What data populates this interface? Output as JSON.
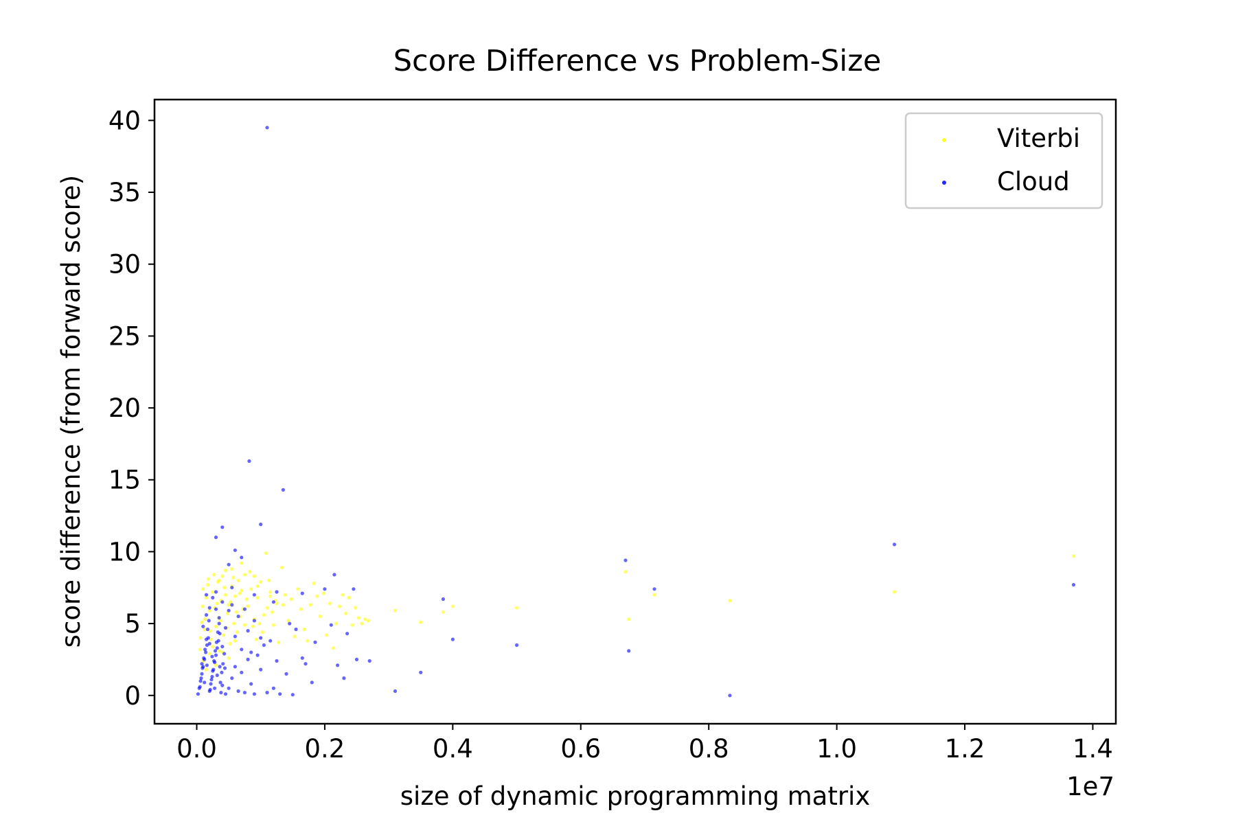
{
  "chart_data": {
    "type": "scatter",
    "title": "Score Difference vs Problem-Size",
    "xlabel": "size of dynamic programming matrix",
    "ylabel": "score difference (from forward score)",
    "x_offset_label": "1e7",
    "xlim": [
      -0.066,
      1.436
    ],
    "ylim": [
      -1.97,
      41.45
    ],
    "x_unit_multiplier": 10000000,
    "x_ticks": [
      0.0,
      0.2,
      0.4,
      0.6,
      0.8,
      1.0,
      1.2,
      1.4
    ],
    "x_tick_labels": [
      "0.0",
      "0.2",
      "0.4",
      "0.6",
      "0.8",
      "1.0",
      "1.2",
      "1.4"
    ],
    "y_ticks": [
      0,
      5,
      10,
      15,
      20,
      25,
      30,
      35,
      40
    ],
    "y_tick_labels": [
      "0",
      "5",
      "10",
      "15",
      "20",
      "25",
      "30",
      "35",
      "40"
    ],
    "grid": false,
    "legend_position": "top-right",
    "series": [
      {
        "name": "Viterbi",
        "color": "#ffff00",
        "points": [
          [
            0.005,
            3.2
          ],
          [
            0.008,
            5.1
          ],
          [
            0.01,
            7.4
          ],
          [
            0.012,
            4.6
          ],
          [
            0.015,
            6.8
          ],
          [
            0.018,
            8.1
          ],
          [
            0.02,
            5.9
          ],
          [
            0.022,
            3.9
          ],
          [
            0.025,
            7.2
          ],
          [
            0.028,
            6.1
          ],
          [
            0.03,
            4.8
          ],
          [
            0.033,
            7.9
          ],
          [
            0.035,
            5.4
          ],
          [
            0.038,
            6.6
          ],
          [
            0.04,
            8.3
          ],
          [
            0.042,
            4.2
          ],
          [
            0.045,
            7.0
          ],
          [
            0.048,
            5.7
          ],
          [
            0.05,
            6.3
          ],
          [
            0.052,
            3.6
          ],
          [
            0.055,
            7.6
          ],
          [
            0.058,
            5.0
          ],
          [
            0.06,
            6.9
          ],
          [
            0.063,
            4.4
          ],
          [
            0.065,
            8.0
          ],
          [
            0.068,
            5.5
          ],
          [
            0.07,
            7.3
          ],
          [
            0.072,
            6.0
          ],
          [
            0.075,
            4.9
          ],
          [
            0.078,
            6.7
          ],
          [
            0.01,
            2.4
          ],
          [
            0.015,
            1.8
          ],
          [
            0.02,
            2.9
          ],
          [
            0.025,
            3.4
          ],
          [
            0.03,
            2.1
          ],
          [
            0.035,
            3.1
          ],
          [
            0.006,
            4.0
          ],
          [
            0.009,
            6.2
          ],
          [
            0.013,
            5.3
          ],
          [
            0.017,
            7.7
          ],
          [
            0.021,
            4.5
          ],
          [
            0.027,
            8.4
          ],
          [
            0.032,
            6.4
          ],
          [
            0.037,
            5.2
          ],
          [
            0.043,
            7.5
          ],
          [
            0.047,
            4.7
          ],
          [
            0.053,
            6.5
          ],
          [
            0.057,
            8.2
          ],
          [
            0.062,
            5.8
          ],
          [
            0.067,
            7.1
          ],
          [
            0.08,
            6.2
          ],
          [
            0.085,
            7.4
          ],
          [
            0.09,
            5.3
          ],
          [
            0.095,
            6.8
          ],
          [
            0.1,
            7.9
          ],
          [
            0.105,
            5.6
          ],
          [
            0.11,
            6.1
          ],
          [
            0.115,
            7.2
          ],
          [
            0.12,
            4.9
          ],
          [
            0.125,
            6.4
          ],
          [
            0.083,
            8.6
          ],
          [
            0.088,
            4.8
          ],
          [
            0.093,
            3.9
          ],
          [
            0.098,
            5.0
          ],
          [
            0.103,
            4.4
          ],
          [
            0.108,
            9.9
          ],
          [
            0.113,
            8.0
          ],
          [
            0.118,
            5.8
          ],
          [
            0.123,
            6.6
          ],
          [
            0.128,
            3.7
          ],
          [
            0.133,
            8.9
          ],
          [
            0.138,
            7.0
          ],
          [
            0.143,
            5.2
          ],
          [
            0.148,
            6.7
          ],
          [
            0.153,
            4.1
          ],
          [
            0.158,
            7.4
          ],
          [
            0.163,
            6.0
          ],
          [
            0.168,
            4.6
          ],
          [
            0.173,
            3.8
          ],
          [
            0.178,
            6.3
          ],
          [
            0.183,
            7.8
          ],
          [
            0.188,
            6.9
          ],
          [
            0.193,
            5.5
          ],
          [
            0.198,
            7.1
          ],
          [
            0.203,
            4.2
          ],
          [
            0.208,
            6.4
          ],
          [
            0.213,
            3.3
          ],
          [
            0.218,
            5.0
          ],
          [
            0.223,
            6.2
          ],
          [
            0.228,
            7.0
          ],
          [
            0.233,
            5.7
          ],
          [
            0.238,
            6.8
          ],
          [
            0.243,
            4.9
          ],
          [
            0.248,
            6.1
          ],
          [
            0.253,
            5.4
          ],
          [
            0.258,
            5.0
          ],
          [
            0.263,
            5.3
          ],
          [
            0.268,
            5.2
          ],
          [
            0.09,
            8.3
          ],
          [
            0.07,
            9.2
          ],
          [
            0.31,
            5.9
          ],
          [
            0.35,
            5.1
          ],
          [
            0.385,
            5.8
          ],
          [
            0.4,
            6.2
          ],
          [
            0.5,
            6.1
          ],
          [
            0.67,
            8.6
          ],
          [
            0.675,
            5.3
          ],
          [
            0.715,
            7.0
          ],
          [
            0.833,
            6.6
          ],
          [
            1.09,
            7.2
          ],
          [
            1.37,
            9.7
          ],
          [
            0.04,
            3.0
          ],
          [
            0.05,
            2.6
          ],
          [
            0.06,
            3.8
          ],
          [
            0.045,
            8.7
          ],
          [
            0.035,
            8.0
          ],
          [
            0.075,
            8.4
          ],
          [
            0.055,
            8.8
          ],
          [
            0.095,
            7.6
          ],
          [
            0.115,
            6.9
          ],
          [
            0.135,
            6.3
          ]
        ]
      },
      {
        "name": "Cloud",
        "color": "#0000ff",
        "points": [
          [
            0.002,
            0.1
          ],
          [
            0.004,
            0.5
          ],
          [
            0.006,
            1.0
          ],
          [
            0.008,
            1.5
          ],
          [
            0.01,
            2.0
          ],
          [
            0.012,
            2.5
          ],
          [
            0.014,
            3.0
          ],
          [
            0.016,
            3.5
          ],
          [
            0.018,
            4.0
          ],
          [
            0.02,
            0.3
          ],
          [
            0.022,
            0.8
          ],
          [
            0.024,
            1.3
          ],
          [
            0.026,
            1.8
          ],
          [
            0.028,
            2.3
          ],
          [
            0.03,
            2.8
          ],
          [
            0.032,
            3.3
          ],
          [
            0.034,
            3.8
          ],
          [
            0.036,
            4.3
          ],
          [
            0.038,
            0.2
          ],
          [
            0.04,
            0.7
          ],
          [
            0.005,
            0.6
          ],
          [
            0.007,
            1.2
          ],
          [
            0.009,
            1.9
          ],
          [
            0.011,
            2.6
          ],
          [
            0.013,
            3.2
          ],
          [
            0.015,
            3.9
          ],
          [
            0.017,
            4.6
          ],
          [
            0.019,
            5.2
          ],
          [
            0.021,
            0.4
          ],
          [
            0.023,
            1.1
          ],
          [
            0.025,
            1.7
          ],
          [
            0.027,
            2.4
          ],
          [
            0.029,
            3.1
          ],
          [
            0.031,
            3.7
          ],
          [
            0.033,
            4.4
          ],
          [
            0.035,
            5.0
          ],
          [
            0.037,
            0.9
          ],
          [
            0.039,
            1.6
          ],
          [
            0.041,
            2.2
          ],
          [
            0.043,
            2.9
          ],
          [
            0.008,
            2.2
          ],
          [
            0.012,
            0.9
          ],
          [
            0.016,
            2.1
          ],
          [
            0.02,
            3.6
          ],
          [
            0.024,
            2.7
          ],
          [
            0.028,
            0.5
          ],
          [
            0.032,
            1.4
          ],
          [
            0.036,
            2.0
          ],
          [
            0.04,
            3.4
          ],
          [
            0.044,
            1.9
          ],
          [
            0.01,
            4.8
          ],
          [
            0.015,
            5.6
          ],
          [
            0.02,
            6.1
          ],
          [
            0.025,
            6.8
          ],
          [
            0.03,
            7.2
          ],
          [
            0.035,
            5.4
          ],
          [
            0.04,
            6.5
          ],
          [
            0.045,
            4.7
          ],
          [
            0.05,
            5.9
          ],
          [
            0.055,
            6.3
          ],
          [
            0.045,
            0.1
          ],
          [
            0.05,
            0.5
          ],
          [
            0.055,
            1.2
          ],
          [
            0.06,
            2.0
          ],
          [
            0.065,
            0.3
          ],
          [
            0.07,
            1.6
          ],
          [
            0.075,
            0.2
          ],
          [
            0.08,
            2.5
          ],
          [
            0.085,
            0.8
          ],
          [
            0.09,
            0.1
          ],
          [
            0.06,
            4.1
          ],
          [
            0.065,
            5.5
          ],
          [
            0.07,
            3.2
          ],
          [
            0.075,
            6.0
          ],
          [
            0.08,
            4.5
          ],
          [
            0.085,
            3.0
          ],
          [
            0.09,
            5.2
          ],
          [
            0.095,
            2.8
          ],
          [
            0.1,
            4.0
          ],
          [
            0.105,
            3.5
          ],
          [
            0.11,
            39.5
          ],
          [
            0.082,
            16.3
          ],
          [
            0.135,
            14.3
          ],
          [
            0.04,
            11.7
          ],
          [
            0.1,
            11.9
          ],
          [
            0.03,
            11.0
          ],
          [
            0.06,
            10.1
          ],
          [
            0.07,
            9.6
          ],
          [
            0.05,
            9.1
          ],
          [
            0.12,
            6.5
          ],
          [
            0.11,
            0.2
          ],
          [
            0.12,
            0.5
          ],
          [
            0.13,
            0.1
          ],
          [
            0.15,
            0.05
          ],
          [
            0.1,
            1.8
          ],
          [
            0.115,
            3.8
          ],
          [
            0.125,
            2.4
          ],
          [
            0.14,
            1.5
          ],
          [
            0.155,
            4.6
          ],
          [
            0.165,
            2.6
          ],
          [
            0.17,
            2.2
          ],
          [
            0.18,
            0.9
          ],
          [
            0.185,
            3.7
          ],
          [
            0.2,
            7.4
          ],
          [
            0.21,
            4.9
          ],
          [
            0.215,
            8.4
          ],
          [
            0.22,
            2.1
          ],
          [
            0.23,
            1.2
          ],
          [
            0.235,
            4.3
          ],
          [
            0.245,
            7.4
          ],
          [
            0.25,
            2.5
          ],
          [
            0.27,
            2.4
          ],
          [
            0.31,
            0.3
          ],
          [
            0.35,
            1.6
          ],
          [
            0.385,
            6.7
          ],
          [
            0.4,
            3.9
          ],
          [
            0.5,
            3.5
          ],
          [
            0.67,
            9.4
          ],
          [
            0.675,
            3.1
          ],
          [
            0.715,
            7.4
          ],
          [
            0.833,
            0.0
          ],
          [
            1.09,
            10.5
          ],
          [
            1.37,
            7.7
          ],
          [
            0.165,
            7.1
          ],
          [
            0.145,
            5.0
          ],
          [
            0.09,
            7.0
          ],
          [
            0.125,
            7.2
          ],
          [
            0.055,
            7.5
          ],
          [
            0.03,
            6.0
          ],
          [
            0.015,
            7.0
          ]
        ]
      }
    ]
  }
}
